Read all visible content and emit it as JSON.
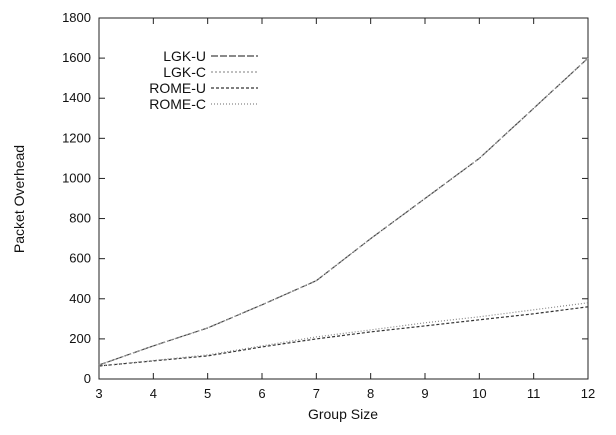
{
  "chart_data": {
    "type": "line",
    "xlabel": "Group Size",
    "ylabel": "Packet Overhead",
    "xlim": [
      3,
      12
    ],
    "ylim": [
      0,
      1800
    ],
    "xticks": [
      3,
      4,
      5,
      6,
      7,
      8,
      9,
      10,
      11,
      12
    ],
    "yticks": [
      0,
      200,
      400,
      600,
      800,
      1000,
      1200,
      1400,
      1600,
      1800
    ],
    "grid": false,
    "legend_position": "top-left",
    "x": [
      3,
      4,
      5,
      6,
      7,
      8,
      9,
      10,
      11,
      12
    ],
    "series": [
      {
        "name": "LGK-U",
        "values": [
          70,
          165,
          255,
          370,
          490,
          700,
          900,
          1100,
          1350,
          1600
        ],
        "color": "#444444",
        "dash": "7,2"
      },
      {
        "name": "LGK-C",
        "values": [
          70,
          165,
          255,
          370,
          490,
          700,
          900,
          1100,
          1350,
          1600
        ],
        "color": "#999999",
        "dash": "2,2"
      },
      {
        "name": "ROME-U",
        "values": [
          65,
          90,
          115,
          160,
          200,
          235,
          265,
          295,
          325,
          360
        ],
        "color": "#333333",
        "dash": "3,2"
      },
      {
        "name": "ROME-C",
        "values": [
          65,
          92,
          120,
          165,
          210,
          245,
          280,
          310,
          345,
          380
        ],
        "color": "#888888",
        "dash": "1,2"
      }
    ]
  }
}
